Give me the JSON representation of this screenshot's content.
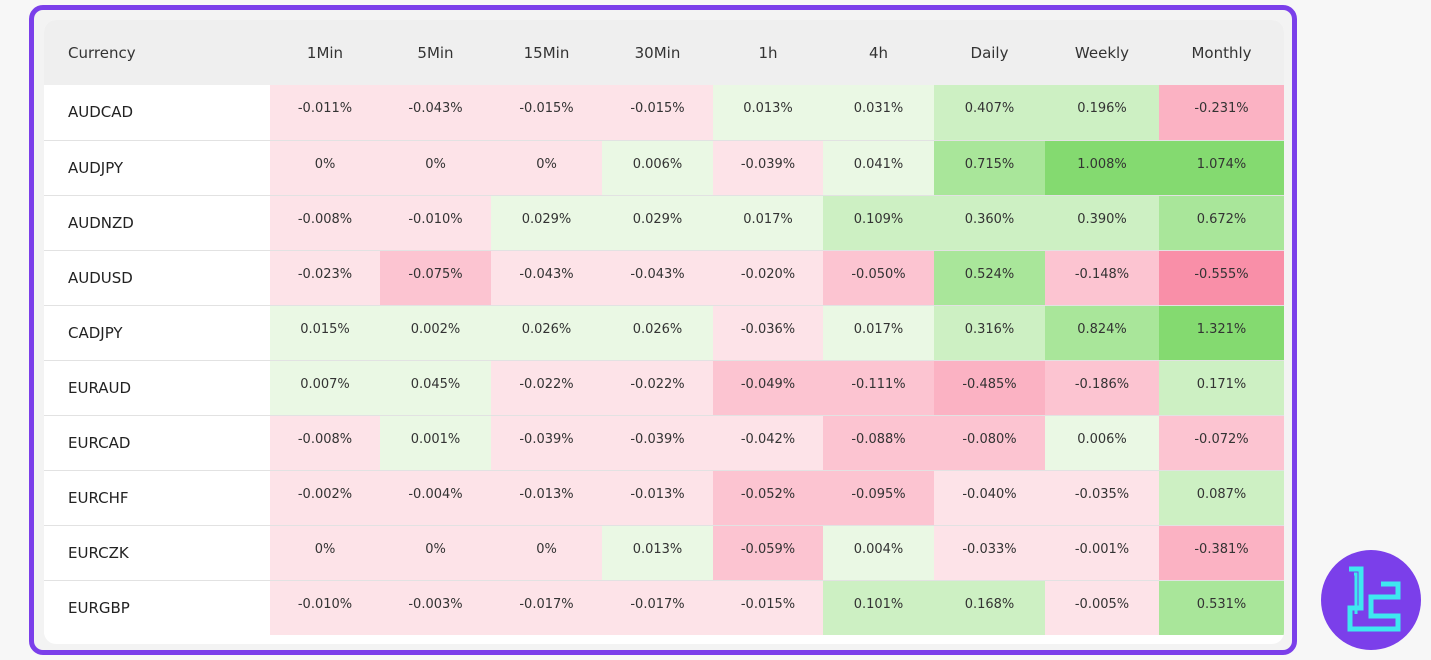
{
  "table": {
    "columns": [
      "Currency",
      "1Min",
      "5Min",
      "15Min",
      "30Min",
      "1h",
      "4h",
      "Daily",
      "Weekly",
      "Monthly"
    ],
    "rows": [
      {
        "currency": "AUDCAD",
        "values": [
          "-0.011%",
          "-0.043%",
          "-0.015%",
          "-0.015%",
          "0.013%",
          "0.031%",
          "0.407%",
          "0.196%",
          "-0.231%"
        ]
      },
      {
        "currency": "AUDJPY",
        "values": [
          "0%",
          "0%",
          "0%",
          "0.006%",
          "-0.039%",
          "0.041%",
          "0.715%",
          "1.008%",
          "1.074%"
        ]
      },
      {
        "currency": "AUDNZD",
        "values": [
          "-0.008%",
          "-0.010%",
          "0.029%",
          "0.029%",
          "0.017%",
          "0.109%",
          "0.360%",
          "0.390%",
          "0.672%"
        ]
      },
      {
        "currency": "AUDUSD",
        "values": [
          "-0.023%",
          "-0.075%",
          "-0.043%",
          "-0.043%",
          "-0.020%",
          "-0.050%",
          "0.524%",
          "-0.148%",
          "-0.555%"
        ]
      },
      {
        "currency": "CADJPY",
        "values": [
          "0.015%",
          "0.002%",
          "0.026%",
          "0.026%",
          "-0.036%",
          "0.017%",
          "0.316%",
          "0.824%",
          "1.321%"
        ]
      },
      {
        "currency": "EURAUD",
        "values": [
          "0.007%",
          "0.045%",
          "-0.022%",
          "-0.022%",
          "-0.049%",
          "-0.111%",
          "-0.485%",
          "-0.186%",
          "0.171%"
        ]
      },
      {
        "currency": "EURCAD",
        "values": [
          "-0.008%",
          "0.001%",
          "-0.039%",
          "-0.039%",
          "-0.042%",
          "-0.088%",
          "-0.080%",
          "0.006%",
          "-0.072%"
        ]
      },
      {
        "currency": "EURCHF",
        "values": [
          "-0.002%",
          "-0.004%",
          "-0.013%",
          "-0.013%",
          "-0.052%",
          "-0.095%",
          "-0.040%",
          "-0.035%",
          "0.087%"
        ]
      },
      {
        "currency": "EURCZK",
        "values": [
          "0%",
          "0%",
          "0%",
          "0.013%",
          "-0.059%",
          "0.004%",
          "-0.033%",
          "-0.001%",
          "-0.381%"
        ]
      },
      {
        "currency": "EURGBP",
        "values": [
          "-0.010%",
          "-0.003%",
          "-0.017%",
          "-0.017%",
          "-0.015%",
          "0.101%",
          "0.168%",
          "-0.005%",
          "0.531%"
        ]
      }
    ]
  },
  "colors": {
    "frame": "#7b3fea",
    "neg_1": "#fde3e8",
    "neg_2": "#fcc4d1",
    "neg_3": "#fbb2c3",
    "neg_4": "#f98fa8",
    "pos_1": "#eaf8e4",
    "pos_2": "#cdf0c3",
    "pos_3": "#a9e69a",
    "pos_4": "#84da70",
    "logo_bg": "#7b3fea",
    "logo_fg": "#3ee8f0"
  },
  "logo": {
    "icon": "tradingfinder-logo-icon"
  }
}
